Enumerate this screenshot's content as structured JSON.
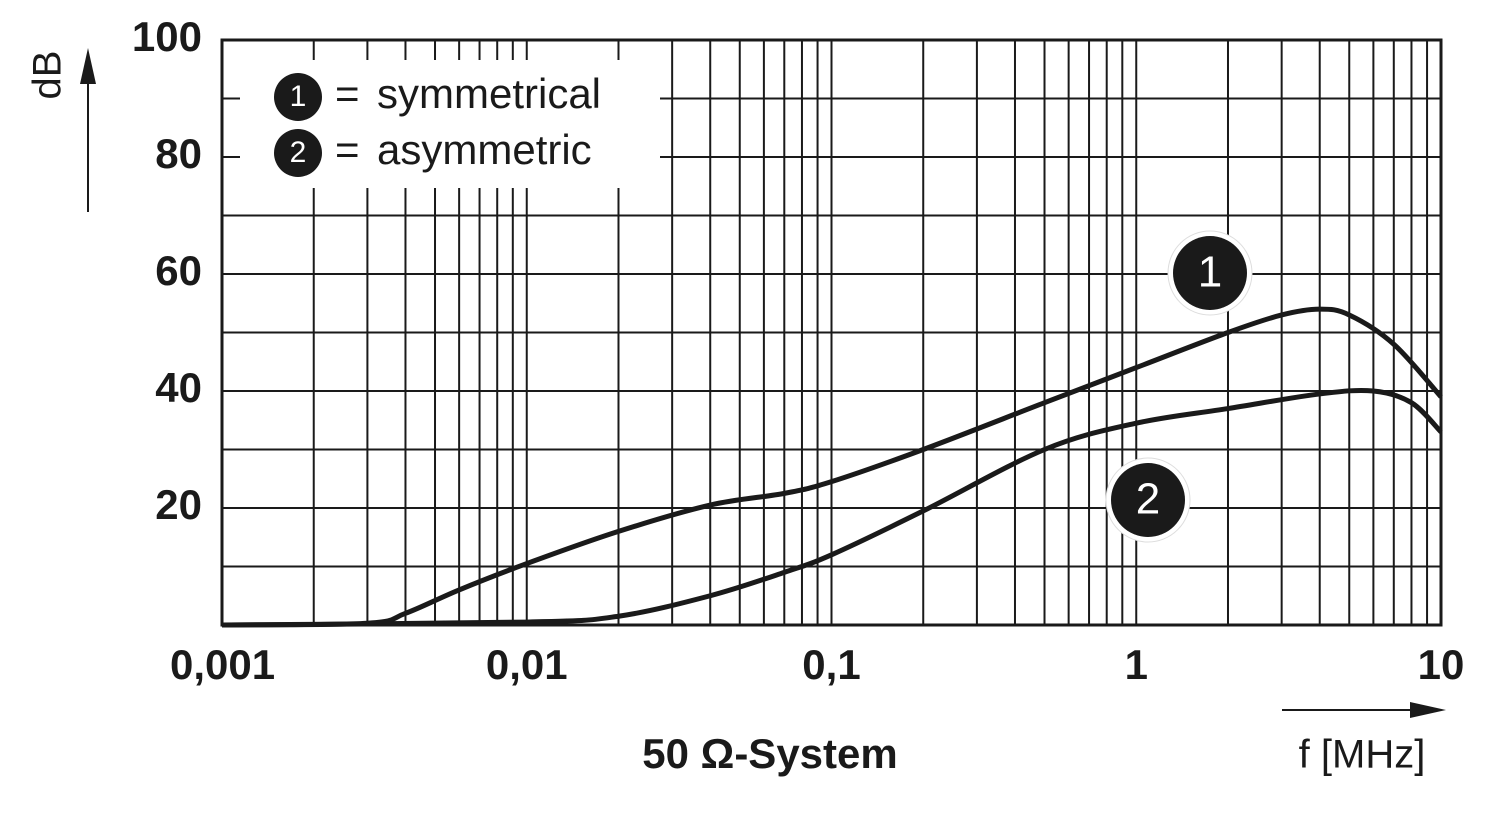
{
  "chart_data": {
    "type": "line",
    "subtitle": "50 Ω-System",
    "x_label": "f [MHz]",
    "y_label": "dB",
    "xscale": "log",
    "xlim": [
      0.001,
      10
    ],
    "xticks": [
      {
        "value": 0.001,
        "label": "0,001"
      },
      {
        "value": 0.01,
        "label": "0,01"
      },
      {
        "value": 0.1,
        "label": "0,1"
      },
      1,
      10
    ],
    "ylim": [
      0,
      100
    ],
    "yticks": [
      20,
      40,
      60,
      80,
      100
    ],
    "grid": true,
    "minor_grid": true,
    "legend": "upper left",
    "series": [
      {
        "name": "symmetrical",
        "marker": "1",
        "color": "#1a1a1a",
        "x": [
          0.001,
          0.003,
          0.004,
          0.006,
          0.01,
          0.02,
          0.04,
          0.07,
          0.1,
          0.2,
          0.5,
          1,
          2,
          3,
          4,
          5,
          7,
          10
        ],
        "values": [
          0,
          0.3,
          2,
          6,
          10.5,
          16,
          20.5,
          22.5,
          24.5,
          30,
          38,
          44,
          50,
          53,
          54,
          53,
          48,
          39
        ]
      },
      {
        "name": "asymmetric",
        "marker": "2",
        "color": "#1a1a1a",
        "x": [
          0.001,
          0.01,
          0.02,
          0.04,
          0.07,
          0.1,
          0.2,
          0.5,
          1,
          2,
          4,
          6,
          8,
          10
        ],
        "values": [
          0,
          0.5,
          1.5,
          5,
          9,
          12,
          19.5,
          30,
          34.5,
          37,
          39.5,
          40,
          38,
          33
        ]
      }
    ]
  }
}
